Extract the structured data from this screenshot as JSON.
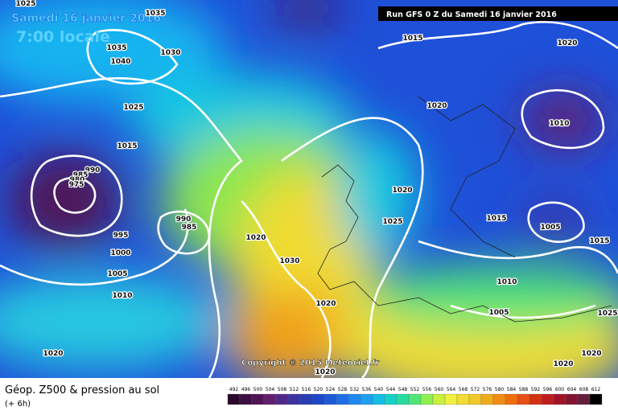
{
  "header": {
    "title": "Samedi 16 janvier 2016",
    "time": "7:00 locale",
    "run": "Run GFS 0 Z du Samedi 16 janvier 2016"
  },
  "copyright": "Copyright © 2015 Meteociel.fr",
  "isobar_labels": [
    "1025",
    "1035",
    "1035",
    "1030",
    "1040",
    "1025",
    "1015",
    "990",
    "985",
    "980",
    "975",
    "990",
    "985",
    "995",
    "1000",
    "1005",
    "1010",
    "1020",
    "1020",
    "1030",
    "1020",
    "1015",
    "1020",
    "1020",
    "1010",
    "1020",
    "1025",
    "1015",
    "1005",
    "1015",
    "1010",
    "1005",
    "1025",
    "1020",
    "1020",
    "1020"
  ],
  "legend": {
    "title": "Géop. Z500 & pression au sol",
    "step": "(+ 6h)",
    "labels": [
      492,
      496,
      500,
      504,
      508,
      512,
      516,
      520,
      524,
      528,
      532,
      536,
      540,
      544,
      548,
      552,
      556,
      560,
      564,
      568,
      572,
      576,
      580,
      584,
      588,
      592,
      596,
      600,
      604,
      608,
      612
    ],
    "colors": [
      "#2a0a2a",
      "#3c0f40",
      "#501456",
      "#641e6e",
      "#502888",
      "#3c32a0",
      "#283cb4",
      "#1e46c8",
      "#1e5ad8",
      "#1e6ee6",
      "#1e88f0",
      "#1ea0f0",
      "#14bee6",
      "#14d2c8",
      "#28dca0",
      "#50e678",
      "#8cf050",
      "#c8f03c",
      "#f0f03c",
      "#f0dc32",
      "#f0c828",
      "#f0aa1e",
      "#f08c14",
      "#f06e0a",
      "#e65014",
      "#d23214",
      "#be1e1e",
      "#a01428",
      "#821432",
      "#641e3c",
      "#000000"
    ]
  }
}
